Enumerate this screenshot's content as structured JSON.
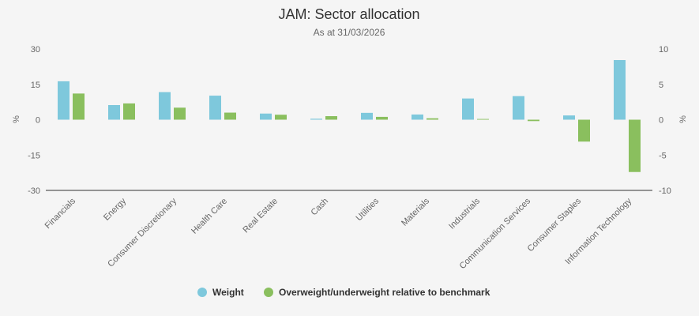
{
  "chart_data": {
    "type": "bar",
    "title": "JAM: Sector allocation",
    "subtitle": "As at 31/03/2026",
    "categories": [
      "Financials",
      "Energy",
      "Consumer Discretionary",
      "Health Care",
      "Real Estate",
      "Cash",
      "Utilities",
      "Materials",
      "Industrials",
      "Communication Services",
      "Consumer Staples",
      "Information Technology"
    ],
    "series": [
      {
        "name": "Weight",
        "axis": "left",
        "color": "#7ec8dc",
        "values": [
          16.3,
          6.2,
          11.7,
          10.2,
          2.6,
          0.4,
          2.9,
          2.2,
          9.0,
          10.0,
          1.8,
          25.3
        ]
      },
      {
        "name": "Overweight/underweight relative to benchmark",
        "axis": "right",
        "color": "#8abf5e",
        "values": [
          3.7,
          2.3,
          1.7,
          1.0,
          0.7,
          0.5,
          0.4,
          0.2,
          0.1,
          -0.2,
          -3.1,
          -7.4
        ]
      }
    ],
    "yaxis_left": {
      "label": "%",
      "min": -30,
      "max": 30,
      "ticks": [
        30,
        15,
        0,
        -15,
        -30
      ]
    },
    "yaxis_right": {
      "label": "%",
      "min": -10,
      "max": 10,
      "ticks": [
        10,
        5,
        0,
        -5,
        -10
      ]
    },
    "legend_position": "bottom-center",
    "grid": false
  }
}
